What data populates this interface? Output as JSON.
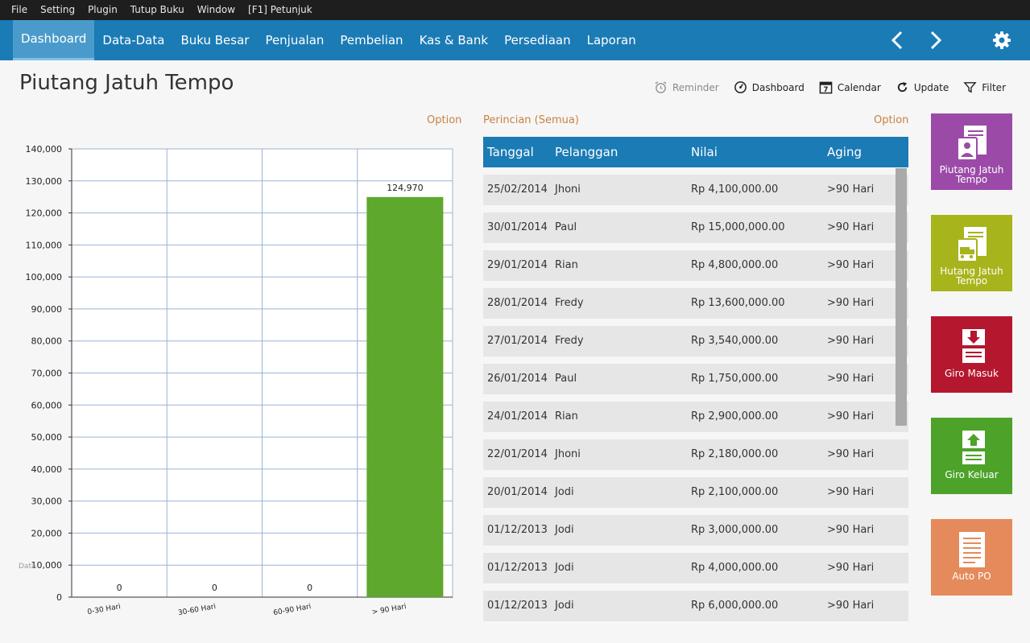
{
  "menu": [
    "File",
    "Setting",
    "Plugin",
    "Tutup Buku",
    "Window",
    "[F1] Petunjuk"
  ],
  "nav": {
    "tabs": [
      "Dashboard",
      "Data-Data",
      "Buku Besar",
      "Penjualan",
      "Pembelian",
      "Kas & Bank",
      "Persediaan",
      "Laporan"
    ],
    "active_tab": "Dashboard",
    "back_icon": "chevron-left-icon",
    "forward_icon": "chevron-right-icon",
    "settings_icon": "gear-icon"
  },
  "page": {
    "title": "Piutang Jatuh Tempo"
  },
  "toolbar": {
    "reminder": "Reminder",
    "dashboard": "Dashboard",
    "calendar": "Calendar",
    "calendar_day": "7",
    "update": "Update",
    "filter": "Filter"
  },
  "chart_option": "Option",
  "chart_watermark": "Data",
  "chart_data": {
    "type": "bar",
    "categories": [
      "0-30 Hari",
      "30-60 Hari",
      "60-90 Hari",
      "> 90 Hari"
    ],
    "values": [
      0,
      0,
      0,
      124970
    ],
    "data_labels": [
      "0",
      "0",
      "0",
      "124,970"
    ],
    "ylim": [
      0,
      140000
    ],
    "yticks": [
      0,
      10000,
      20000,
      30000,
      40000,
      50000,
      60000,
      70000,
      80000,
      90000,
      100000,
      110000,
      120000,
      130000,
      140000
    ],
    "ytick_labels": [
      "0",
      "10,000",
      "20,000",
      "30,000",
      "40,000",
      "50,000",
      "60,000",
      "70,000",
      "80,000",
      "90,000",
      "100,000",
      "110,000",
      "120,000",
      "130,000",
      "140,000"
    ],
    "grid": true,
    "bar_color": "#5ea82d"
  },
  "table": {
    "caption": "Perincian (Semua)",
    "option": "Option",
    "columns": [
      "Tanggal",
      "Pelanggan",
      "Nilai",
      "Aging"
    ],
    "rows": [
      {
        "tanggal": "25/02/2014",
        "pelanggan": "Jhoni",
        "nilai": "Rp 4,100,000.00",
        "aging": ">90 Hari"
      },
      {
        "tanggal": "30/01/2014",
        "pelanggan": "Paul",
        "nilai": "Rp 15,000,000.00",
        "aging": ">90 Hari"
      },
      {
        "tanggal": "29/01/2014",
        "pelanggan": "Rian",
        "nilai": "Rp 4,800,000.00",
        "aging": ">90 Hari"
      },
      {
        "tanggal": "28/01/2014",
        "pelanggan": "Fredy",
        "nilai": "Rp 13,600,000.00",
        "aging": ">90 Hari"
      },
      {
        "tanggal": "27/01/2014",
        "pelanggan": "Fredy",
        "nilai": "Rp 3,540,000.00",
        "aging": ">90 Hari"
      },
      {
        "tanggal": "26/01/2014",
        "pelanggan": "Paul",
        "nilai": "Rp 1,750,000.00",
        "aging": ">90 Hari"
      },
      {
        "tanggal": "24/01/2014",
        "pelanggan": "Rian",
        "nilai": "Rp 2,900,000.00",
        "aging": ">90 Hari"
      },
      {
        "tanggal": "22/01/2014",
        "pelanggan": "Jhoni",
        "nilai": "Rp 2,180,000.00",
        "aging": ">90 Hari"
      },
      {
        "tanggal": "20/01/2014",
        "pelanggan": "Jodi",
        "nilai": "Rp 2,100,000.00",
        "aging": ">90 Hari"
      },
      {
        "tanggal": "01/12/2013",
        "pelanggan": "Jodi",
        "nilai": "Rp 3,000,000.00",
        "aging": ">90 Hari"
      },
      {
        "tanggal": "01/12/2013",
        "pelanggan": "Jodi",
        "nilai": "Rp 4,000,000.00",
        "aging": ">90 Hari"
      },
      {
        "tanggal": "01/12/2013",
        "pelanggan": "Jodi",
        "nilai": "Rp 6,000,000.00",
        "aging": ">90 Hari"
      }
    ]
  },
  "tiles": [
    {
      "line1": "Piutang Jatuh",
      "line2": "Tempo",
      "color": "#9b4aa8",
      "icon": "receivable-document-icon"
    },
    {
      "line1": "Hutang Jatuh",
      "line2": "Tempo",
      "color": "#a8b41c",
      "icon": "payable-document-icon"
    },
    {
      "line1": "Giro Masuk",
      "line2": "",
      "color": "#b5172f",
      "icon": "giro-in-icon"
    },
    {
      "line1": "Giro Keluar",
      "line2": "",
      "color": "#4da32a",
      "icon": "giro-out-icon"
    },
    {
      "line1": "Auto PO",
      "line2": "",
      "color": "#e58a5a",
      "icon": "auto-po-document-icon"
    }
  ],
  "colors": {
    "menubar_bg": "#1e1e1e",
    "navbar_bg": "#1b7bb5",
    "accent_orange": "#c8823f",
    "row_bg": "#e6e6e6"
  }
}
